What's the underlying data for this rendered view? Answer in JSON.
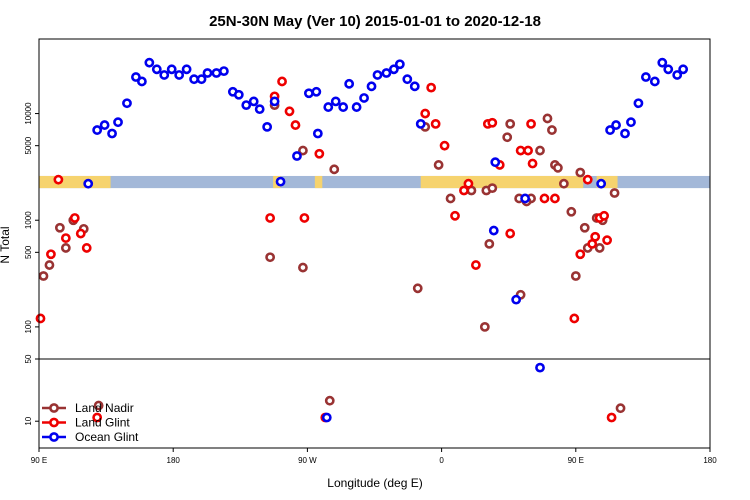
{
  "chart_data": {
    "type": "scatter",
    "title": "25N-30N May (Ver 10)   2015-01-01 to 2020-12-18",
    "xlabel": "Longitude (deg E)",
    "ylabel": "N Total",
    "x_ticks": [
      {
        "pos": 0,
        "label": "90 E"
      },
      {
        "pos": 90,
        "label": "180"
      },
      {
        "pos": 180,
        "label": "90 W"
      },
      {
        "pos": 270,
        "label": "0"
      },
      {
        "pos": 360,
        "label": "90 E"
      },
      {
        "pos": 450,
        "label": "180"
      }
    ],
    "xlim": [
      0,
      450
    ],
    "y_ticks_upper": [
      100,
      500,
      1000,
      5000,
      10000
    ],
    "y_ticks_lower": [
      10,
      50
    ],
    "ylim": [
      5,
      50000
    ],
    "split_value": 50,
    "colors": {
      "land_nadir": "#993333",
      "land_glint": "#ee0000",
      "ocean_glint": "#0000ee",
      "band_land": "#f6d36e",
      "band_ocean": "#a3b8d8"
    },
    "band": {
      "y_low": 2000,
      "y_high": 2600,
      "land_segments": [
        [
          0,
          48
        ],
        [
          157,
          162
        ],
        [
          185,
          190
        ],
        [
          256,
          365
        ],
        [
          374,
          388
        ]
      ]
    },
    "legend": [
      "Land Nadir",
      "Land Glint",
      "Ocean Glint"
    ],
    "series": [
      {
        "name": "Land Nadir",
        "key": "land_nadir",
        "points": [
          [
            3,
            300
          ],
          [
            7,
            380
          ],
          [
            14,
            850
          ],
          [
            18,
            550
          ],
          [
            23,
            1000
          ],
          [
            30,
            830
          ],
          [
            40,
            15
          ],
          [
            155,
            450
          ],
          [
            158,
            12000
          ],
          [
            177,
            4500
          ],
          [
            198,
            3000
          ],
          [
            195,
            17
          ],
          [
            177,
            360
          ],
          [
            254,
            230
          ],
          [
            259,
            7500
          ],
          [
            268,
            3300
          ],
          [
            276,
            1600
          ],
          [
            290,
            1900
          ],
          [
            300,
            1900
          ],
          [
            299,
            100
          ],
          [
            302,
            600
          ],
          [
            304,
            2000
          ],
          [
            314,
            6000
          ],
          [
            316,
            8000
          ],
          [
            322,
            1600
          ],
          [
            323,
            200
          ],
          [
            330,
            1600
          ],
          [
            327,
            1500
          ],
          [
            336,
            4500
          ],
          [
            341,
            9000
          ],
          [
            344,
            7000
          ],
          [
            346,
            3300
          ],
          [
            348,
            3100
          ],
          [
            352,
            2200
          ],
          [
            357,
            1200
          ],
          [
            360,
            300
          ],
          [
            366,
            850
          ],
          [
            368,
            550
          ],
          [
            376,
            550
          ],
          [
            378,
            1000
          ],
          [
            363,
            2800
          ],
          [
            374,
            1050
          ],
          [
            386,
            1800
          ],
          [
            390,
            14
          ]
        ]
      },
      {
        "name": "Land Glint",
        "key": "land_glint",
        "points": [
          [
            1,
            120
          ],
          [
            8,
            480
          ],
          [
            13,
            2400
          ],
          [
            18,
            680
          ],
          [
            24,
            1050
          ],
          [
            28,
            750
          ],
          [
            32,
            550
          ],
          [
            39,
            11
          ],
          [
            155,
            1050
          ],
          [
            158,
            14500
          ],
          [
            163,
            20000
          ],
          [
            168,
            10500
          ],
          [
            172,
            7800
          ],
          [
            178,
            1050
          ],
          [
            188,
            4200
          ],
          [
            192,
            11
          ],
          [
            259,
            10000
          ],
          [
            263,
            17500
          ],
          [
            266,
            8000
          ],
          [
            272,
            5000
          ],
          [
            279,
            1100
          ],
          [
            285,
            1900
          ],
          [
            288,
            2200
          ],
          [
            293,
            380
          ],
          [
            301,
            8000
          ],
          [
            304,
            8200
          ],
          [
            309,
            3300
          ],
          [
            316,
            750
          ],
          [
            323,
            4500
          ],
          [
            328,
            4500
          ],
          [
            330,
            8000
          ],
          [
            331,
            3400
          ],
          [
            339,
            1600
          ],
          [
            346,
            1600
          ],
          [
            359,
            120
          ],
          [
            363,
            480
          ],
          [
            368,
            2400
          ],
          [
            376,
            1050
          ],
          [
            381,
            650
          ],
          [
            384,
            11
          ],
          [
            371,
            600
          ],
          [
            373,
            700
          ],
          [
            379,
            1100
          ]
        ]
      },
      {
        "name": "Ocean Glint",
        "key": "ocean_glint",
        "points": [
          [
            33,
            2200
          ],
          [
            39,
            7000
          ],
          [
            44,
            7800
          ],
          [
            49,
            6500
          ],
          [
            53,
            8300
          ],
          [
            59,
            12500
          ],
          [
            65,
            22000
          ],
          [
            69,
            20000
          ],
          [
            74,
            30000
          ],
          [
            79,
            26000
          ],
          [
            84,
            23000
          ],
          [
            89,
            26000
          ],
          [
            94,
            23000
          ],
          [
            99,
            26000
          ],
          [
            104,
            21000
          ],
          [
            109,
            21000
          ],
          [
            113,
            24000
          ],
          [
            119,
            24000
          ],
          [
            124,
            25000
          ],
          [
            130,
            16000
          ],
          [
            134,
            15000
          ],
          [
            139,
            12000
          ],
          [
            144,
            13000
          ],
          [
            148,
            11000
          ],
          [
            153,
            7500
          ],
          [
            158,
            13000
          ],
          [
            162,
            2300
          ],
          [
            173,
            4000
          ],
          [
            181,
            15500
          ],
          [
            186,
            16000
          ],
          [
            187,
            6500
          ],
          [
            193,
            11
          ],
          [
            194,
            11500
          ],
          [
            199,
            13000
          ],
          [
            204,
            11500
          ],
          [
            208,
            19000
          ],
          [
            213,
            11500
          ],
          [
            218,
            14000
          ],
          [
            223,
            18000
          ],
          [
            227,
            23000
          ],
          [
            233,
            24000
          ],
          [
            238,
            26000
          ],
          [
            242,
            29000
          ],
          [
            247,
            21000
          ],
          [
            252,
            18000
          ],
          [
            256,
            8000
          ],
          [
            305,
            800
          ],
          [
            306,
            3500
          ],
          [
            320,
            180
          ],
          [
            326,
            1600
          ],
          [
            336,
            40
          ],
          [
            377,
            2200
          ],
          [
            383,
            7000
          ],
          [
            387,
            7800
          ],
          [
            393,
            6500
          ],
          [
            397,
            8300
          ],
          [
            402,
            12500
          ],
          [
            407,
            22000
          ],
          [
            413,
            20000
          ],
          [
            418,
            30000
          ],
          [
            422,
            26000
          ],
          [
            428,
            23000
          ],
          [
            432,
            26000
          ]
        ]
      }
    ]
  }
}
